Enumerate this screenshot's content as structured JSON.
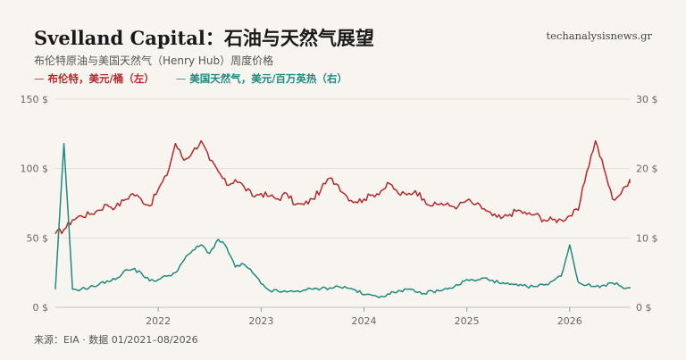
{
  "header": {
    "title": "Svelland Capital：石油与天然气展望",
    "subtitle": "布伦特原油与美国天然气（Henry Hub）周度价格",
    "site": "techanalysisnews.gr"
  },
  "footer": {
    "source": "来源：EIA · 数据 01/2021–08/2026"
  },
  "colors": {
    "brent": "#b5282a",
    "gas": "#1f8a7e",
    "grid": "#e4ded4",
    "background": "#f8f5f0"
  },
  "chart_data": {
    "type": "line",
    "x_range": [
      "2021-01",
      "2026-08"
    ],
    "x_ticks": [
      "2022",
      "2023",
      "2024",
      "2025",
      "2026"
    ],
    "left_axis": {
      "ylim": [
        0,
        150
      ],
      "ticks": [
        "0 $",
        "50 $",
        "100 $",
        "150 $"
      ]
    },
    "right_axis": {
      "ylim": [
        0,
        30
      ],
      "ticks": [
        "0 $",
        "10 $",
        "20 $",
        "30 $"
      ]
    },
    "grid": true,
    "legend_position": "top-left",
    "series": [
      {
        "name": "布伦特，美元/桶（左）",
        "axis": "left",
        "x": [
          "2021-01",
          "2021-02",
          "2021-03",
          "2021-04",
          "2021-05",
          "2021-06",
          "2021-07",
          "2021-08",
          "2021-09",
          "2021-10",
          "2021-11",
          "2021-12",
          "2022-01",
          "2022-02",
          "2022-03",
          "2022-04",
          "2022-05",
          "2022-06",
          "2022-07",
          "2022-08",
          "2022-09",
          "2022-10",
          "2022-11",
          "2022-12",
          "2023-01",
          "2023-02",
          "2023-03",
          "2023-04",
          "2023-05",
          "2023-06",
          "2023-07",
          "2023-08",
          "2023-09",
          "2023-10",
          "2023-11",
          "2023-12",
          "2024-01",
          "2024-02",
          "2024-03",
          "2024-04",
          "2024-05",
          "2024-06",
          "2024-07",
          "2024-08",
          "2024-09",
          "2024-10",
          "2024-11",
          "2024-12",
          "2025-01",
          "2025-02",
          "2025-03",
          "2025-04",
          "2025-05",
          "2025-06",
          "2025-07",
          "2025-08",
          "2025-09",
          "2025-10",
          "2025-11",
          "2025-12",
          "2026-01",
          "2026-02",
          "2026-03",
          "2026-04",
          "2026-05",
          "2026-06",
          "2026-07",
          "2026-08"
        ],
        "values": [
          53,
          56,
          63,
          66,
          67,
          70,
          74,
          72,
          77,
          82,
          78,
          73,
          85,
          95,
          118,
          106,
          112,
          120,
          106,
          98,
          88,
          92,
          87,
          80,
          82,
          80,
          78,
          82,
          74,
          74,
          78,
          85,
          93,
          88,
          80,
          76,
          78,
          81,
          84,
          89,
          82,
          81,
          84,
          78,
          73,
          75,
          73,
          73,
          77,
          74,
          71,
          66,
          64,
          67,
          70,
          67,
          67,
          63,
          63,
          63,
          66,
          70,
          98,
          120,
          100,
          78,
          82,
          92
        ]
      },
      {
        "name": "美国天然气，美元/百万英热（右）",
        "axis": "right",
        "x": [
          "2021-01",
          "2021-02",
          "2021-03",
          "2021-04",
          "2021-05",
          "2021-06",
          "2021-07",
          "2021-08",
          "2021-09",
          "2021-10",
          "2021-11",
          "2021-12",
          "2022-01",
          "2022-02",
          "2022-03",
          "2022-04",
          "2022-05",
          "2022-06",
          "2022-07",
          "2022-08",
          "2022-09",
          "2022-10",
          "2022-11",
          "2022-12",
          "2023-01",
          "2023-02",
          "2023-03",
          "2023-04",
          "2023-05",
          "2023-06",
          "2023-07",
          "2023-08",
          "2023-09",
          "2023-10",
          "2023-11",
          "2023-12",
          "2024-01",
          "2024-02",
          "2024-03",
          "2024-04",
          "2024-05",
          "2024-06",
          "2024-07",
          "2024-08",
          "2024-09",
          "2024-10",
          "2024-11",
          "2024-12",
          "2025-01",
          "2025-02",
          "2025-03",
          "2025-04",
          "2025-05",
          "2025-06",
          "2025-07",
          "2025-08",
          "2025-09",
          "2025-10",
          "2025-11",
          "2025-12",
          "2026-01",
          "2026-02",
          "2026-03",
          "2026-04",
          "2026-05",
          "2026-06",
          "2026-07",
          "2026-08"
        ],
        "values": [
          2.6,
          23.6,
          2.6,
          2.6,
          2.9,
          3.2,
          3.8,
          4.0,
          5.2,
          5.5,
          5.0,
          3.8,
          4.0,
          4.5,
          5.0,
          6.8,
          8.2,
          9.0,
          7.8,
          9.8,
          8.6,
          5.8,
          6.2,
          5.0,
          3.4,
          2.4,
          2.3,
          2.2,
          2.3,
          2.5,
          2.6,
          2.7,
          2.8,
          3.0,
          2.8,
          2.5,
          1.8,
          1.7,
          1.6,
          1.9,
          2.4,
          2.6,
          2.2,
          2.0,
          2.3,
          2.4,
          2.8,
          3.2,
          4.0,
          3.8,
          4.2,
          3.9,
          3.4,
          3.3,
          3.1,
          3.0,
          3.0,
          3.2,
          3.8,
          4.5,
          9.0,
          3.6,
          3.2,
          3.0,
          3.2,
          3.5,
          3.0,
          2.8
        ]
      }
    ]
  }
}
